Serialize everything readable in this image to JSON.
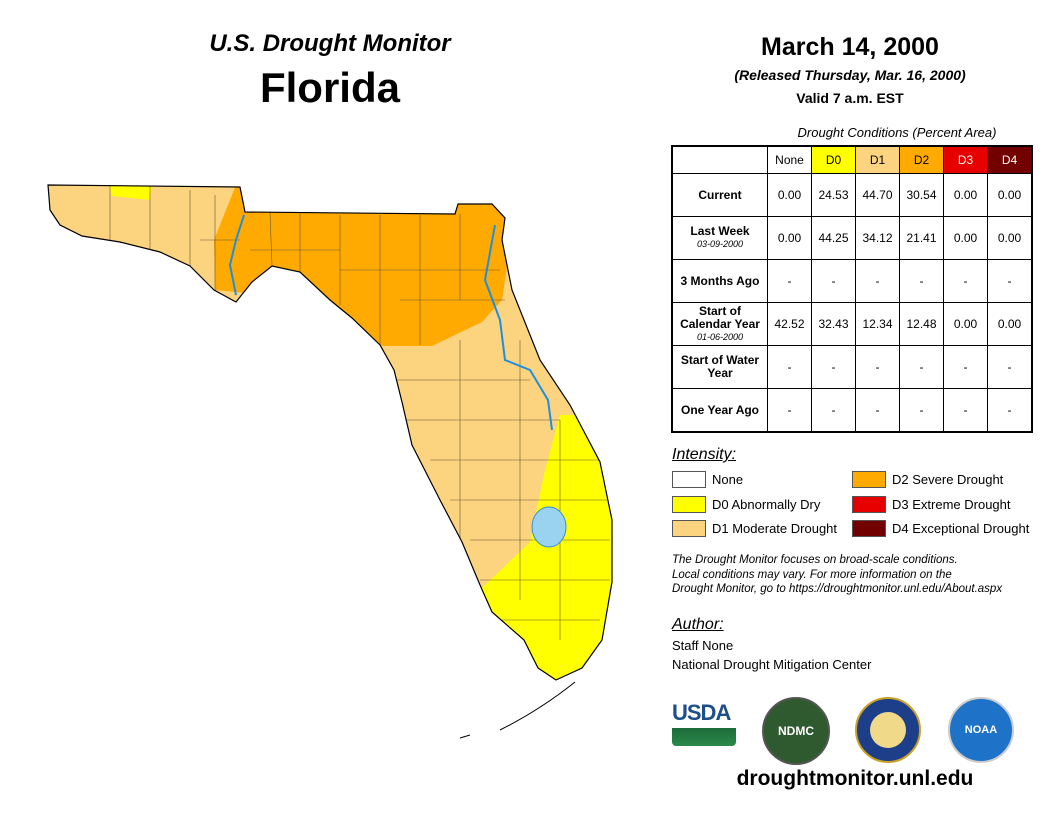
{
  "header": {
    "subtitle": "U.S. Drought Monitor",
    "title": "Florida",
    "date": "March 14, 2000",
    "released": "(Released Thursday, Mar. 16, 2000)",
    "valid": "Valid 7 a.m. EST"
  },
  "table": {
    "caption": "Drought Conditions (Percent Area)",
    "columns": [
      "None",
      "D0",
      "D1",
      "D2",
      "D3",
      "D4"
    ],
    "rows": [
      {
        "label": "Current",
        "sub": "",
        "values": [
          "0.00",
          "24.53",
          "44.70",
          "30.54",
          "0.00",
          "0.00"
        ]
      },
      {
        "label": "Last Week",
        "sub": "03-09-2000",
        "values": [
          "0.00",
          "44.25",
          "34.12",
          "21.41",
          "0.00",
          "0.00"
        ]
      },
      {
        "label": "3 Months Ago",
        "sub": "",
        "values": [
          "-",
          "-",
          "-",
          "-",
          "-",
          "-"
        ]
      },
      {
        "label": "Start of Calendar Year",
        "sub": "01-06-2000",
        "values": [
          "42.52",
          "32.43",
          "12.34",
          "12.48",
          "0.00",
          "0.00"
        ]
      },
      {
        "label": "Start of Water Year",
        "sub": "",
        "values": [
          "-",
          "-",
          "-",
          "-",
          "-",
          "-"
        ]
      },
      {
        "label": "One Year Ago",
        "sub": "",
        "values": [
          "-",
          "-",
          "-",
          "-",
          "-",
          "-"
        ]
      }
    ]
  },
  "legend": {
    "title": "Intensity:",
    "items": [
      {
        "label": "None",
        "color": "#ffffff"
      },
      {
        "label": "D0 Abnormally Dry",
        "color": "#ffff00"
      },
      {
        "label": "D1 Moderate Drought",
        "color": "#fcd37f"
      },
      {
        "label": "D2 Severe Drought",
        "color": "#ffaa00"
      },
      {
        "label": "D3 Extreme Drought",
        "color": "#e60000"
      },
      {
        "label": "D4 Exceptional Drought",
        "color": "#730000"
      }
    ]
  },
  "note": [
    "The Drought Monitor focuses on broad-scale conditions.",
    "Local conditions may vary. For more information on the",
    "Drought Monitor, go to https://droughtmonitor.unl.edu/About.aspx"
  ],
  "author": {
    "heading": "Author:",
    "name": "Staff None",
    "org": "National Drought Mitigation Center"
  },
  "logos": {
    "usda": "USDA",
    "ndmc": "NDMC",
    "noaa": "NOAA"
  },
  "footer_url": "droughtmonitor.unl.edu"
}
